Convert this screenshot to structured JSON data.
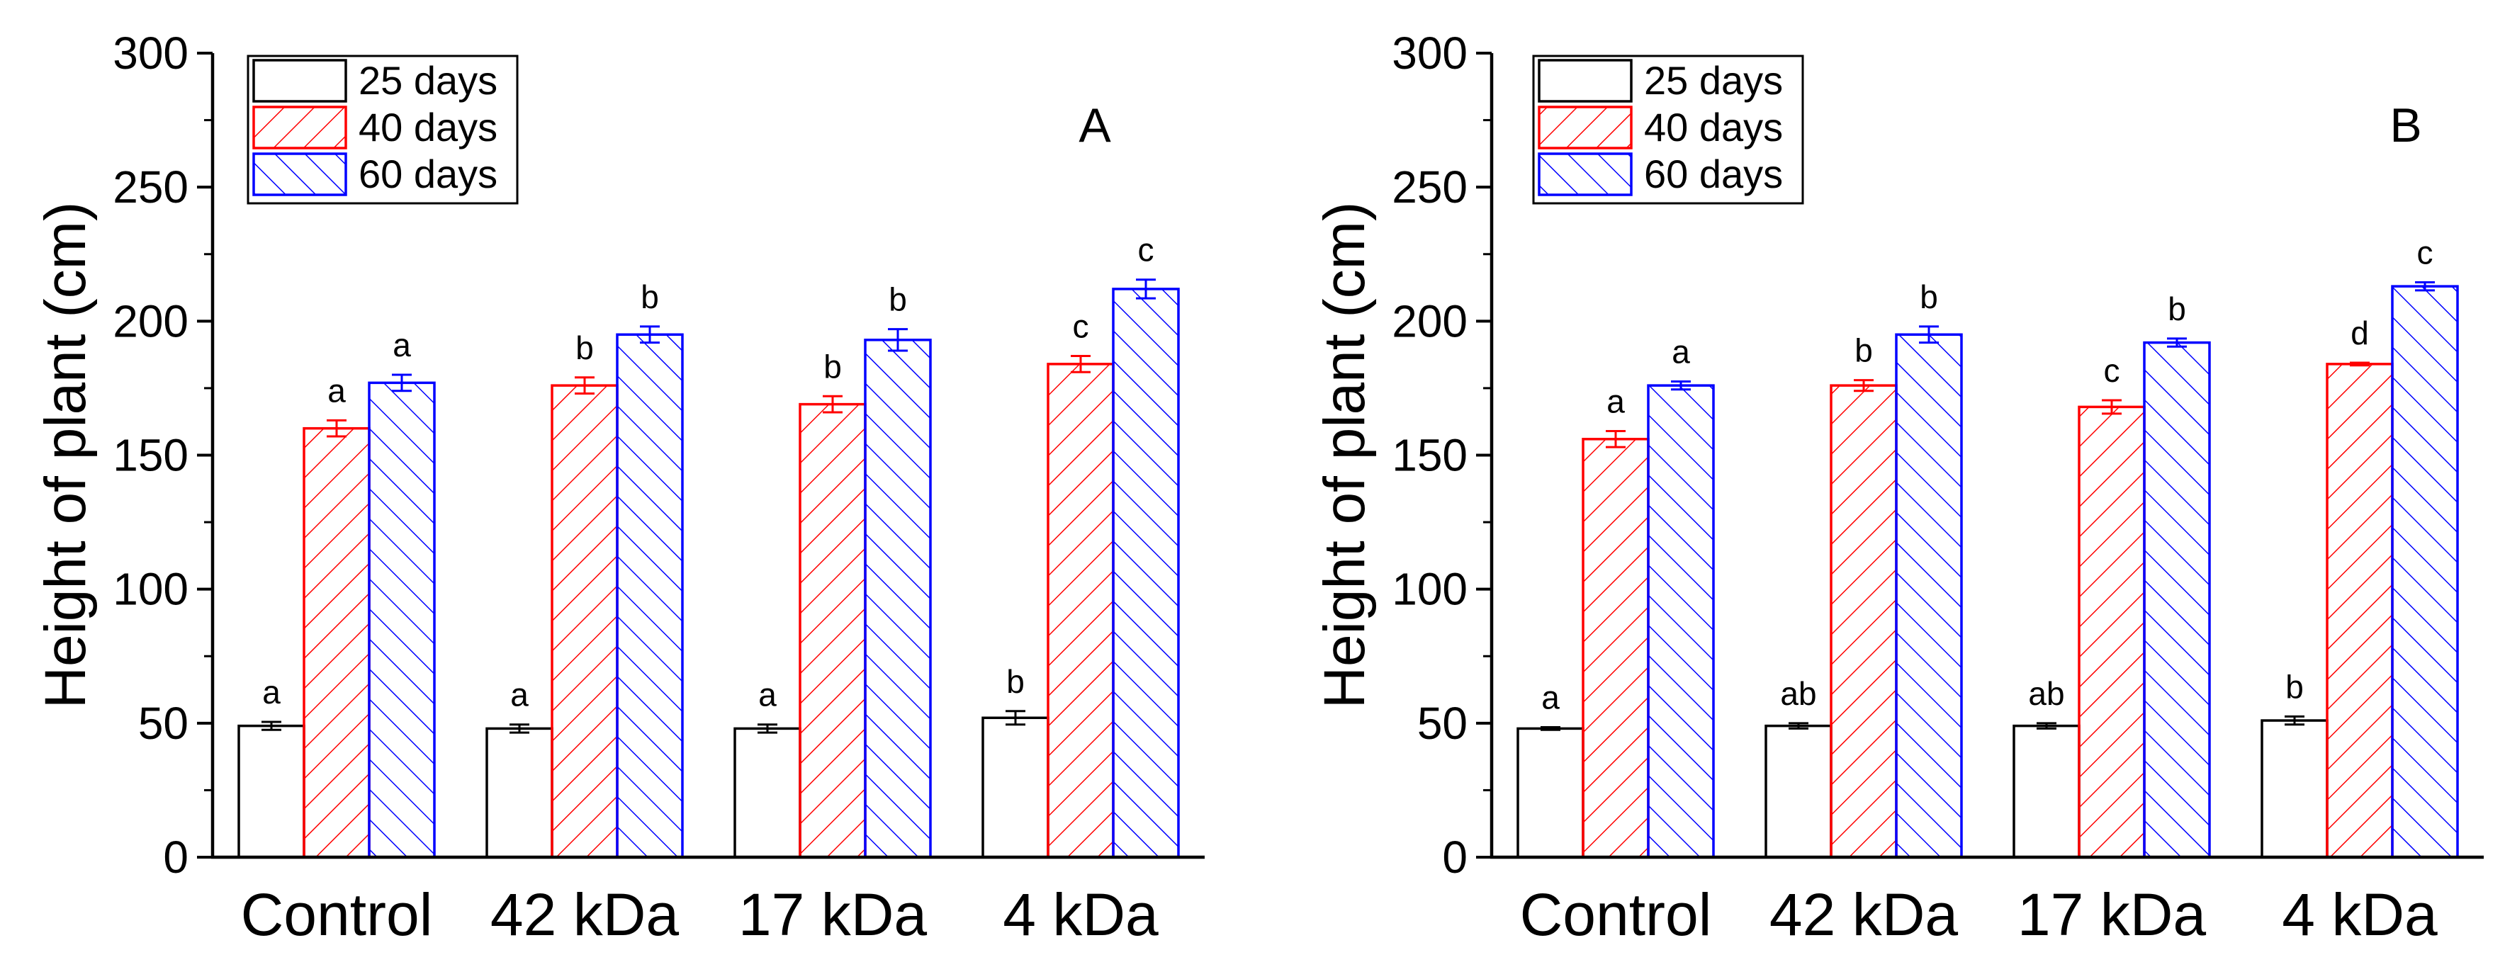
{
  "chart_data": [
    {
      "type": "bar",
      "panel_label": "A",
      "ylabel": "Height of plant (cm)",
      "xlabel": "",
      "ylim": [
        0,
        300
      ],
      "yticks": [
        0,
        50,
        100,
        150,
        200,
        250,
        300
      ],
      "categories": [
        "Control",
        "42 kDa",
        "17 kDa",
        "4 kDa"
      ],
      "legend_position": "top-left",
      "series": [
        {
          "name": "25 days",
          "color": "#000000",
          "pattern": "none",
          "values": [
            49,
            48,
            48,
            52
          ],
          "errors": [
            1.5,
            1.5,
            1.5,
            2.5
          ],
          "labels": [
            "a",
            "a",
            "a",
            "b"
          ]
        },
        {
          "name": "40 days",
          "color": "#ff0000",
          "pattern": "diagonal-up",
          "values": [
            160,
            176,
            169,
            184
          ],
          "errors": [
            3,
            3,
            3,
            3
          ],
          "labels": [
            "a",
            "b",
            "b",
            "c"
          ]
        },
        {
          "name": "60 days",
          "color": "#0000ff",
          "pattern": "diagonal-down",
          "values": [
            177,
            195,
            193,
            212
          ],
          "errors": [
            3,
            3,
            4,
            3.5
          ],
          "labels": [
            "a",
            "b",
            "b",
            "c"
          ]
        }
      ]
    },
    {
      "type": "bar",
      "panel_label": "B",
      "ylabel": "Height of plant (cm)",
      "xlabel": "",
      "ylim": [
        0,
        300
      ],
      "yticks": [
        0,
        50,
        100,
        150,
        200,
        250,
        300
      ],
      "categories": [
        "Control",
        "42 kDa",
        "17 kDa",
        "4 kDa"
      ],
      "legend_position": "top-left",
      "series": [
        {
          "name": "25 days",
          "color": "#000000",
          "pattern": "none",
          "values": [
            48,
            49,
            49,
            51
          ],
          "errors": [
            0.5,
            1,
            1,
            1.5
          ],
          "labels": [
            "a",
            "ab",
            "ab",
            "b"
          ]
        },
        {
          "name": "40 days",
          "color": "#ff0000",
          "pattern": "diagonal-up",
          "values": [
            156,
            176,
            168,
            184
          ],
          "errors": [
            3,
            2,
            2.5,
            0.5
          ],
          "labels": [
            "a",
            "b",
            "c",
            "d"
          ]
        },
        {
          "name": "60 days",
          "color": "#0000ff",
          "pattern": "diagonal-down",
          "values": [
            176,
            195,
            192,
            213
          ],
          "errors": [
            1.5,
            3,
            1.5,
            1.5
          ],
          "labels": [
            "a",
            "b",
            "b",
            "c"
          ]
        }
      ]
    }
  ]
}
